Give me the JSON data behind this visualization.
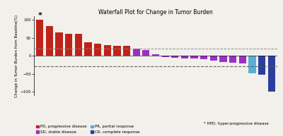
{
  "title": "Waterfall Plot for Change in Tumor Burden",
  "ylabel": "Change in Tumor Burden from Baseline(%)",
  "values": [
    100,
    82,
    65,
    62,
    61,
    38,
    33,
    30,
    28,
    27,
    20,
    15,
    5,
    -3,
    -5,
    -7,
    -8,
    -10,
    -13,
    -18,
    -20,
    -22,
    -48,
    -52,
    -100
  ],
  "colors": [
    "#C0221A",
    "#C0221A",
    "#C0221A",
    "#C0221A",
    "#C0221A",
    "#C0221A",
    "#C0221A",
    "#C0221A",
    "#C0221A",
    "#C0221A",
    "#9B30C8",
    "#9B30C8",
    "#9B30C8",
    "#9B30C8",
    "#9B30C8",
    "#9B30C8",
    "#9B30C8",
    "#9B30C8",
    "#9B30C8",
    "#9B30C8",
    "#9B30C8",
    "#9B30C8",
    "#5BADD4",
    "#2B3F9E",
    "#2B3F9E"
  ],
  "hpd_index": 0,
  "dashed_line_upper": 20,
  "dashed_line_lower": -30,
  "ylim": [
    -110,
    110
  ],
  "yticks": [
    -100,
    -50,
    0,
    50,
    100
  ],
  "background_color": "#f2f0eb",
  "legend_items": [
    {
      "label": "PD, progressive disease",
      "color": "#C0221A"
    },
    {
      "label": "SD, stable disease",
      "color": "#9B30C8"
    },
    {
      "label": "PR, partial response",
      "color": "#5BADD4"
    },
    {
      "label": "CR, complete response",
      "color": "#2B3F9E"
    }
  ],
  "hpd_text": "* HPD, hyper-progressive disease"
}
